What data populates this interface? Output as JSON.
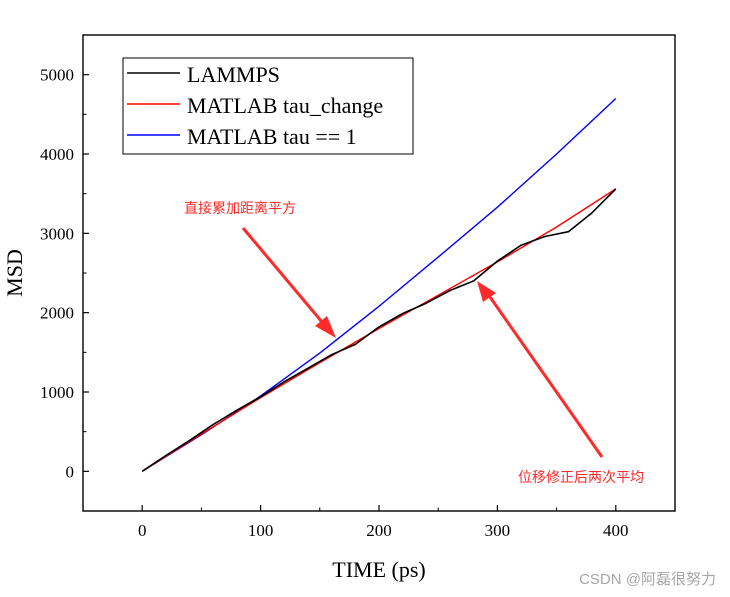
{
  "chart_data": {
    "type": "line",
    "xlabel": "TIME (ps)",
    "ylabel": "MSD",
    "xlim": [
      -50,
      450
    ],
    "ylim": [
      -500,
      5500
    ],
    "xticks": [
      0,
      100,
      200,
      300,
      400
    ],
    "yticks": [
      0,
      1000,
      2000,
      3000,
      4000,
      5000
    ],
    "xtick_labels": [
      "0",
      "100",
      "200",
      "300",
      "400"
    ],
    "ytick_labels": [
      "0",
      "1000",
      "2000",
      "3000",
      "4000",
      "5000"
    ],
    "grid": false,
    "legend_position": "top-left",
    "series": [
      {
        "name": "LAMMPS",
        "color": "#000000",
        "x": [
          0,
          20,
          40,
          60,
          80,
          100,
          120,
          140,
          160,
          180,
          200,
          220,
          240,
          260,
          280,
          300,
          320,
          340,
          360,
          380,
          400
        ],
        "y": [
          0,
          200,
          390,
          590,
          770,
          940,
          1130,
          1300,
          1470,
          1600,
          1820,
          1990,
          2120,
          2280,
          2400,
          2650,
          2850,
          2960,
          3020,
          3260,
          3560
        ]
      },
      {
        "name": "MATLAB tau_change",
        "color": "#ff0000",
        "x": [
          0,
          50,
          100,
          150,
          200,
          250,
          300,
          350,
          400
        ],
        "y": [
          0,
          470,
          930,
          1370,
          1800,
          2220,
          2640,
          3080,
          3560
        ]
      },
      {
        "name": "MATLAB tau == 1",
        "color": "#0000ff",
        "x": [
          0,
          50,
          100,
          150,
          200,
          250,
          300,
          350,
          400
        ],
        "y": [
          0,
          460,
          950,
          1490,
          2080,
          2700,
          3330,
          4000,
          4700
        ]
      }
    ],
    "annotations": [
      {
        "text": "直接累加距离平方",
        "color": "#ff2a2a",
        "arrow_to": [
          163,
          1700
        ]
      },
      {
        "text": "位移修正后两次平均",
        "color": "#ff2a2a",
        "arrow_to": [
          285,
          2400
        ]
      }
    ]
  },
  "watermark": "CSDN @阿磊很努力"
}
